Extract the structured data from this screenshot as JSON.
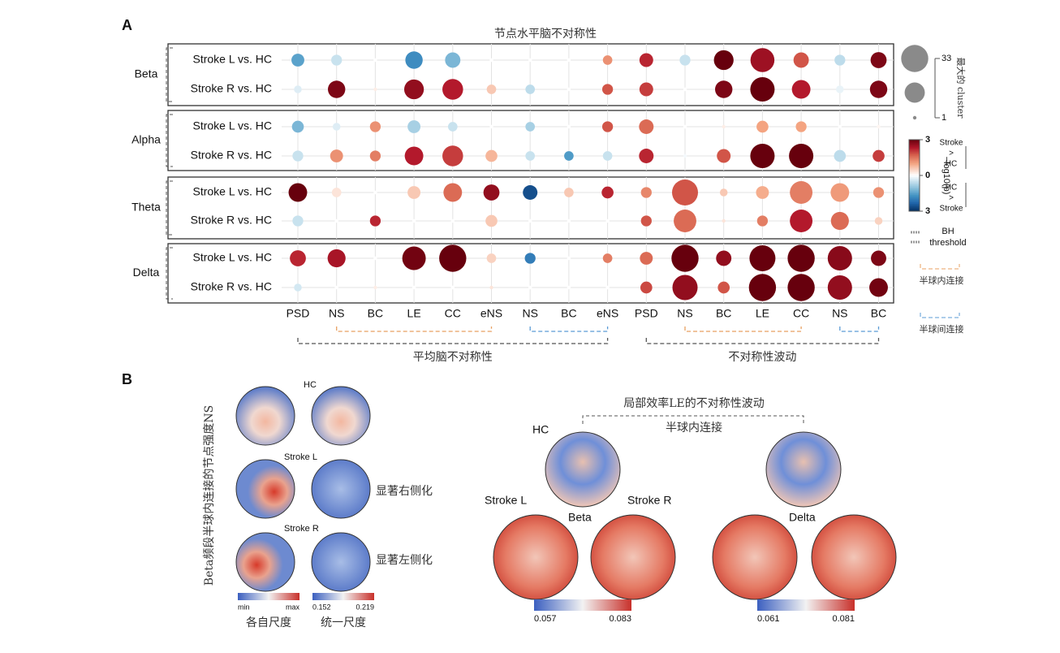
{
  "chart_data": {
    "type": "bubble",
    "panel": "A",
    "title": "节点水平脑不对称性",
    "categories": [
      "PSD",
      "NS",
      "BC",
      "LE",
      "CC",
      "eNS",
      "NS",
      "BC",
      "eNS",
      "PSD",
      "NS",
      "BC",
      "LE",
      "CC",
      "NS",
      "BC"
    ],
    "bands": [
      "Beta",
      "Alpha",
      "Theta",
      "Delta"
    ],
    "series": [
      {
        "name": "Stroke L vs. HC",
        "values": [
          -1.5,
          -0.5,
          0,
          -1.8,
          -1.2,
          0,
          0,
          0,
          1.2,
          2.2,
          -0.5,
          3,
          2.5,
          1.8,
          -0.6,
          2.8
        ],
        "sizes": [
          6,
          4,
          1,
          12,
          9,
          1,
          1,
          1,
          3,
          7,
          4,
          16,
          25,
          9,
          4,
          10
        ]
      },
      {
        "name": "Stroke R vs. HC",
        "values": [
          -0.3,
          2.8,
          0.2,
          2.6,
          2.3,
          0.6,
          -0.6,
          0,
          1.8,
          2,
          0,
          2.8,
          3,
          2.3,
          -0.2,
          2.8
        ],
        "sizes": [
          2,
          12,
          1,
          16,
          18,
          3,
          3,
          1,
          4,
          7,
          1,
          12,
          26,
          14,
          2,
          12
        ]
      },
      {
        "name": "Stroke L vs. HC",
        "values": [
          -1.2,
          -0.3,
          1.2,
          -0.8,
          -0.5,
          0,
          -0.8,
          0,
          1.8,
          1.6,
          0,
          0.2,
          1,
          1,
          0,
          0.1
        ],
        "sizes": [
          5,
          2,
          4,
          6,
          3,
          1,
          3,
          1,
          4,
          8,
          1,
          1,
          5,
          4,
          1,
          1
        ]
      },
      {
        "name": "Stroke R vs. HC",
        "values": [
          -0.5,
          1.2,
          1.4,
          2.3,
          2,
          0.8,
          -0.5,
          -1.6,
          -0.5,
          2.2,
          -0.1,
          1.8,
          3,
          3,
          -0.6,
          2
        ],
        "sizes": [
          4,
          6,
          4,
          14,
          18,
          5,
          3,
          3,
          3,
          8,
          1,
          7,
          26,
          26,
          5,
          5
        ]
      },
      {
        "name": "Stroke L vs. HC",
        "values": [
          3,
          0.3,
          0,
          0.6,
          1.6,
          2.6,
          -2.6,
          0.6,
          2.2,
          1.3,
          1.8,
          0.6,
          0.9,
          1.4,
          1.1,
          1.2
        ],
        "sizes": [
          14,
          3,
          1,
          6,
          14,
          10,
          8,
          3,
          5,
          4,
          30,
          2,
          6,
          22,
          14,
          4
        ]
      },
      {
        "name": "Stroke R vs. HC",
        "values": [
          -0.5,
          0,
          2.2,
          0,
          0,
          0.6,
          0,
          0,
          0,
          1.8,
          1.6,
          0.3,
          1.4,
          2.3,
          1.6,
          0.5
        ],
        "sizes": [
          4,
          1,
          4,
          1,
          1,
          5,
          1,
          1,
          1,
          4,
          22,
          1,
          4,
          22,
          13,
          2
        ]
      },
      {
        "name": "Stroke L vs. HC",
        "values": [
          2.2,
          2.4,
          0,
          2.9,
          3,
          0.5,
          -2,
          0,
          1.4,
          1.6,
          3,
          2.6,
          3,
          3,
          2.7,
          2.8
        ],
        "sizes": [
          10,
          13,
          1,
          24,
          33,
          3,
          4,
          1,
          3,
          6,
          33,
          9,
          30,
          33,
          26,
          9
        ]
      },
      {
        "name": "Stroke R vs. HC",
        "values": [
          -0.4,
          0,
          0.2,
          0,
          0,
          0.3,
          0,
          0,
          0,
          1.9,
          2.6,
          1.8,
          3,
          3,
          2.6,
          2.9
        ],
        "sizes": [
          2,
          1,
          1,
          1,
          1,
          1,
          1,
          1,
          1,
          5,
          28,
          5,
          33,
          33,
          26,
          14
        ]
      }
    ],
    "groups": [
      {
        "label": "半球内连接",
        "color": "#e8a060",
        "from": 1,
        "to": 5
      },
      {
        "label": "半球间连接",
        "color": "#5b9bd5",
        "from": 6,
        "to": 8
      },
      {
        "label": "半球内连接",
        "color": "#e8a060",
        "from": 10,
        "to": 13
      },
      {
        "label": "半球间连接",
        "color": "#5b9bd5",
        "from": 14,
        "to": 15
      }
    ],
    "supergroups": [
      {
        "label": "平均脑不对称性",
        "from": 0,
        "to": 8
      },
      {
        "label": "不对称性波动",
        "from": 9,
        "to": 15
      }
    ],
    "colorlim": [
      -3,
      3
    ],
    "colorticks": [
      3,
      0,
      {
        "value": -3,
        "label": "3"
      }
    ],
    "colorbar_label": "−log10(p)",
    "colorbar_top": [
      "Stroke",
      ">",
      "HC"
    ],
    "colorbar_bottom": [
      "HC",
      ">",
      "Stroke"
    ],
    "sizelim": [
      1,
      33
    ],
    "sizeticks": [
      33,
      1
    ],
    "size_label": "最大的 cluster",
    "threshold_label": [
      "BH",
      "threshold"
    ]
  },
  "panel_b": {
    "panel": "B",
    "left_title": "Beta频段半球内连接的节点强度NS",
    "left_labels": [
      "HC",
      "Stroke L",
      "Stroke R"
    ],
    "left_notes": [
      "显著右侧化",
      "显著左侧化"
    ],
    "left_colorbars": [
      {
        "ticks": [
          "min",
          "max"
        ],
        "caption": "各自尺度"
      },
      {
        "ticks": [
          0.152,
          0.219
        ],
        "caption": "统一尺度"
      }
    ],
    "right_title": "局部效率LE的不对称性波动",
    "right_subtitle": "半球内连接",
    "right_labels": [
      "HC",
      "Stroke L",
      "Beta",
      "Stroke R",
      "Delta"
    ],
    "right_colorbars": [
      {
        "ticks": [
          0.057,
          0.083
        ]
      },
      {
        "ticks": [
          0.061,
          0.081
        ]
      }
    ]
  }
}
